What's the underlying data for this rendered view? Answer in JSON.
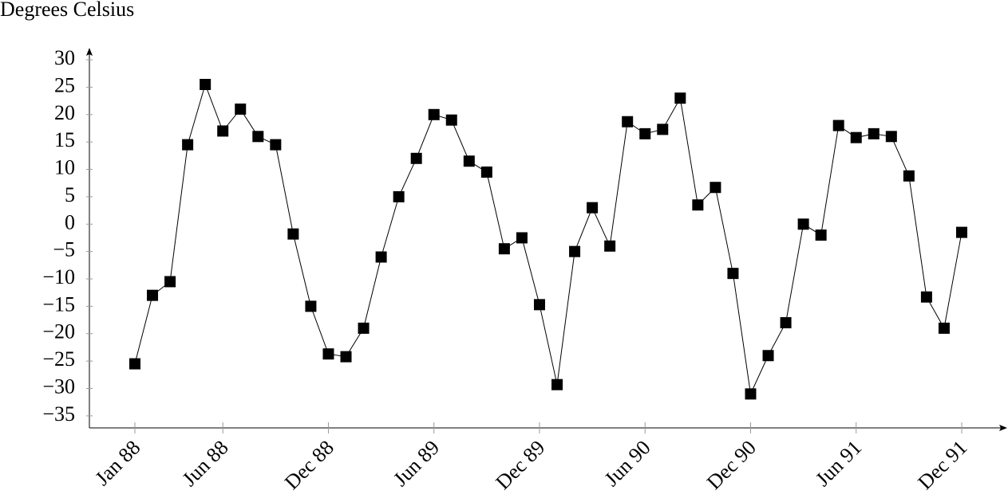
{
  "chart_data": {
    "type": "line",
    "title": "Degrees Celsius",
    "categories": [
      "Jan 88",
      null,
      null,
      null,
      null,
      "Jun 88",
      null,
      null,
      null,
      null,
      null,
      "Dec 88",
      null,
      null,
      null,
      null,
      null,
      "Jun 89",
      null,
      null,
      null,
      null,
      null,
      "Dec 89",
      null,
      null,
      null,
      null,
      null,
      "Jun 90",
      null,
      null,
      null,
      null,
      null,
      "Dec 90",
      null,
      null,
      null,
      null,
      null,
      "Jun 91",
      null,
      null,
      null,
      null,
      null,
      "Dec 91"
    ],
    "series": [
      {
        "color": "#000000",
        "values": [
          -25.5,
          -13,
          -10.5,
          14.5,
          25.5,
          17,
          21,
          16,
          14.5,
          -1.8,
          -15,
          -23.7,
          -24.2,
          -19,
          -6,
          5,
          12,
          20,
          19,
          11.5,
          9.5,
          -4.5,
          -2.5,
          -14.7,
          -29.3,
          -5,
          3,
          -4,
          18.7,
          16.5,
          17.3,
          23,
          3.5,
          6.7,
          -9,
          -31,
          -24,
          -18,
          0,
          -2,
          18,
          15.8,
          16.5,
          16,
          8.8,
          -13.3,
          -19,
          -1.5
        ]
      }
    ],
    "ylim": [
      -37.2,
      31.9
    ],
    "yticks": [
      {
        "value": -35,
        "label": "−35"
      },
      {
        "value": -30,
        "label": "−30"
      },
      {
        "value": -25,
        "label": "−25"
      },
      {
        "value": -20,
        "label": "−20"
      },
      {
        "value": -15,
        "label": "−15"
      },
      {
        "value": -10,
        "label": "−10"
      },
      {
        "value": -5,
        "label": "−5"
      },
      0,
      5,
      10,
      15,
      20,
      25,
      30
    ],
    "grid": false,
    "marker": "square"
  }
}
